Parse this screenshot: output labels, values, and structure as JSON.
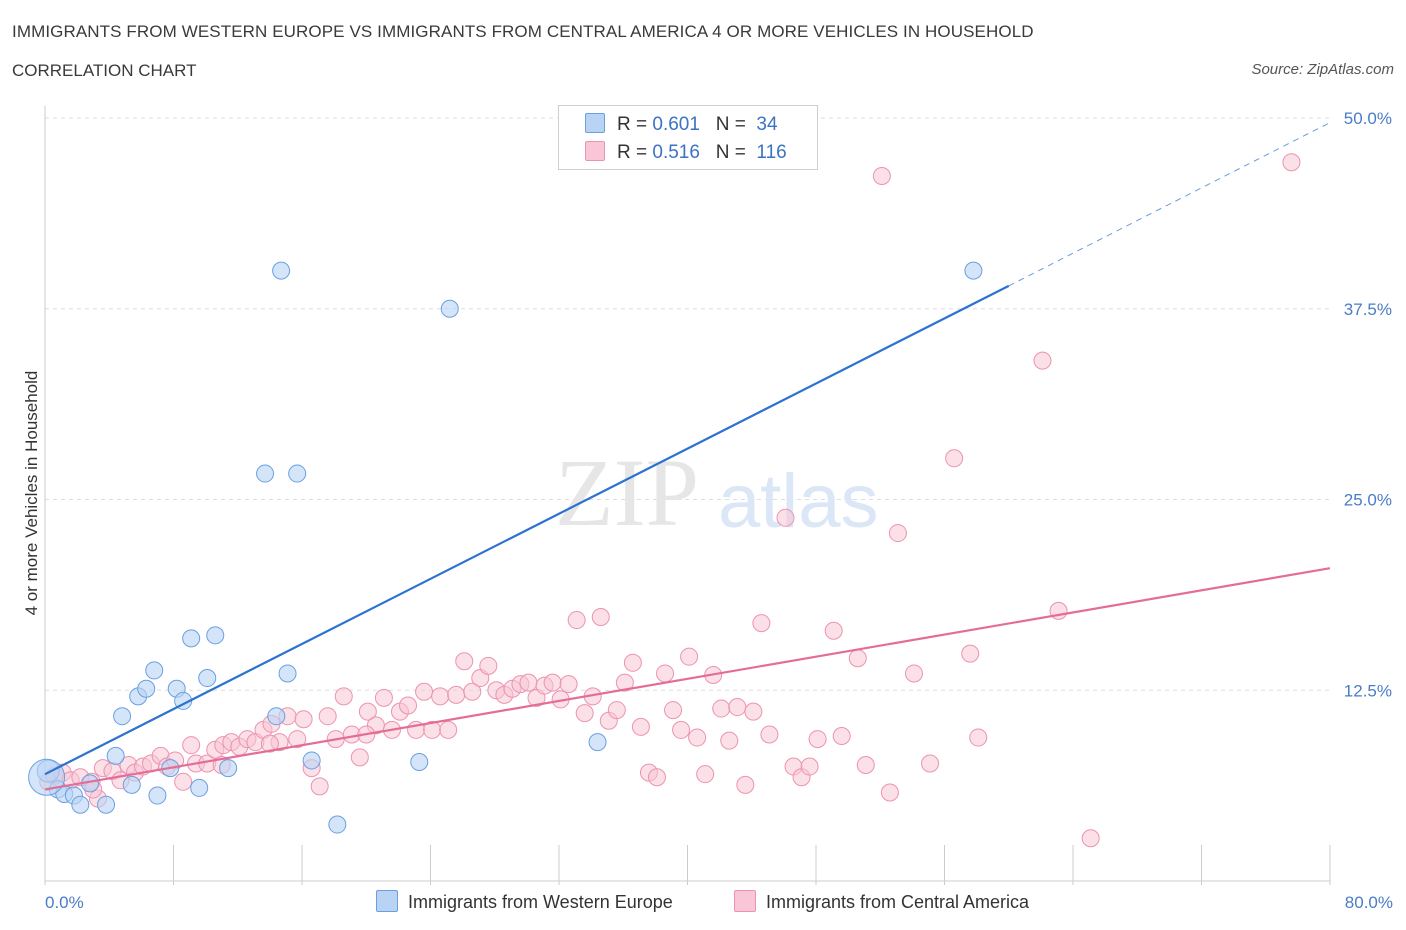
{
  "header": {
    "title": "IMMIGRANTS FROM WESTERN EUROPE VS IMMIGRANTS FROM CENTRAL AMERICA 4 OR MORE VEHICLES IN HOUSEHOLD",
    "subtitle": "CORRELATION CHART",
    "source": "Source: ZipAtlas.com"
  },
  "watermark": {
    "zip": "ZIP",
    "atlas": "atlas"
  },
  "legend": {
    "rows": [
      {
        "r_label": "R = ",
        "r_value": "0.601",
        "n_label": "N = ",
        "n_value": "34"
      },
      {
        "r_label": "R = ",
        "r_value": "0.516",
        "n_label": "N = ",
        "n_value": "116"
      }
    ]
  },
  "colors": {
    "blue_fill": "#b9d3f5",
    "blue_stroke": "#6a9fe0",
    "blue_line": "#2c72d0",
    "pink_fill": "#f8c6d6",
    "pink_stroke": "#ec93b0",
    "pink_line": "#e46d98",
    "grid": "#dddddd"
  },
  "chart_data": {
    "type": "scatter",
    "title": "IMMIGRANTS FROM WESTERN EUROPE VS IMMIGRANTS FROM CENTRAL AMERICA 4 OR MORE VEHICLES IN HOUSEHOLD",
    "subtitle": "CORRELATION CHART",
    "xlabel": "",
    "ylabel": "4 or more Vehicles in Household",
    "xlim": [
      0,
      80
    ],
    "ylim": [
      0,
      50
    ],
    "x_tick_labels": [
      "0.0%",
      "80.0%"
    ],
    "y_ticks": [
      12.5,
      25.0,
      37.5,
      50.0
    ],
    "y_tick_labels": [
      "12.5%",
      "25.0%",
      "37.5%",
      "50.0%"
    ],
    "grid": true,
    "legend_position": "bottom",
    "series": [
      {
        "name": "Immigrants from Western Europe",
        "R": 0.601,
        "N": 34,
        "trend": {
          "x": [
            0,
            60
          ],
          "y": [
            7.0,
            39.0
          ],
          "dashed_extension": {
            "x": [
              60,
              80
            ],
            "y": [
              39.0,
              49.7
            ]
          }
        },
        "points": [
          [
            0.2,
            7.2
          ],
          [
            0.8,
            6.0
          ],
          [
            1.2,
            5.7
          ],
          [
            1.8,
            5.6
          ],
          [
            2.2,
            5.0
          ],
          [
            2.8,
            6.4
          ],
          [
            3.8,
            5.0
          ],
          [
            4.4,
            8.2
          ],
          [
            4.8,
            10.8
          ],
          [
            5.4,
            6.3
          ],
          [
            5.8,
            12.1
          ],
          [
            6.3,
            12.6
          ],
          [
            6.8,
            13.8
          ],
          [
            7.0,
            5.6
          ],
          [
            7.8,
            7.4
          ],
          [
            8.2,
            12.6
          ],
          [
            8.6,
            11.8
          ],
          [
            9.1,
            15.9
          ],
          [
            9.6,
            6.1
          ],
          [
            10.1,
            13.3
          ],
          [
            10.6,
            16.1
          ],
          [
            11.4,
            7.4
          ],
          [
            13.7,
            26.7
          ],
          [
            14.4,
            10.8
          ],
          [
            14.7,
            40.0
          ],
          [
            15.1,
            13.6
          ],
          [
            15.7,
            26.7
          ],
          [
            16.6,
            7.9
          ],
          [
            18.2,
            3.7
          ],
          [
            23.3,
            7.8
          ],
          [
            25.2,
            37.5
          ],
          [
            34.4,
            9.1
          ],
          [
            57.8,
            40.0
          ],
          [
            0.1,
            6.8
          ]
        ]
      },
      {
        "name": "Immigrants from Central America",
        "R": 0.516,
        "N": 116,
        "trend": {
          "x": [
            0,
            80
          ],
          "y": [
            6.0,
            20.5
          ]
        },
        "points": [
          [
            0.2,
            6.5
          ],
          [
            0.6,
            6.9
          ],
          [
            1.1,
            7.1
          ],
          [
            1.6,
            6.6
          ],
          [
            2.2,
            6.8
          ],
          [
            2.9,
            6.5
          ],
          [
            3.3,
            5.4
          ],
          [
            3.6,
            7.4
          ],
          [
            4.2,
            7.2
          ],
          [
            4.7,
            6.6
          ],
          [
            5.2,
            7.6
          ],
          [
            5.6,
            7.1
          ],
          [
            6.1,
            7.5
          ],
          [
            6.6,
            7.7
          ],
          [
            7.2,
            8.2
          ],
          [
            7.6,
            7.5
          ],
          [
            8.1,
            7.9
          ],
          [
            8.6,
            6.5
          ],
          [
            9.1,
            8.9
          ],
          [
            9.4,
            7.7
          ],
          [
            10.1,
            7.7
          ],
          [
            10.6,
            8.6
          ],
          [
            11.1,
            8.9
          ],
          [
            11.6,
            9.1
          ],
          [
            12.1,
            8.8
          ],
          [
            12.6,
            9.3
          ],
          [
            13.1,
            9.1
          ],
          [
            13.6,
            9.9
          ],
          [
            14.1,
            10.3
          ],
          [
            14.6,
            9.1
          ],
          [
            15.1,
            10.8
          ],
          [
            15.7,
            9.3
          ],
          [
            16.1,
            10.6
          ],
          [
            16.6,
            7.4
          ],
          [
            17.1,
            6.2
          ],
          [
            17.6,
            10.8
          ],
          [
            18.1,
            9.3
          ],
          [
            18.6,
            12.1
          ],
          [
            19.1,
            9.6
          ],
          [
            19.6,
            8.1
          ],
          [
            20.1,
            11.1
          ],
          [
            20.6,
            10.2
          ],
          [
            21.1,
            12.0
          ],
          [
            21.6,
            9.9
          ],
          [
            22.1,
            11.1
          ],
          [
            22.6,
            11.5
          ],
          [
            23.1,
            9.9
          ],
          [
            23.6,
            12.4
          ],
          [
            24.1,
            9.9
          ],
          [
            24.6,
            12.1
          ],
          [
            25.1,
            9.9
          ],
          [
            25.6,
            12.2
          ],
          [
            26.1,
            14.4
          ],
          [
            26.6,
            12.4
          ],
          [
            27.1,
            13.3
          ],
          [
            27.6,
            14.1
          ],
          [
            28.1,
            12.5
          ],
          [
            28.6,
            12.2
          ],
          [
            29.1,
            12.6
          ],
          [
            29.6,
            12.9
          ],
          [
            30.1,
            13.0
          ],
          [
            30.6,
            12.0
          ],
          [
            31.1,
            12.8
          ],
          [
            31.6,
            13.0
          ],
          [
            32.1,
            11.9
          ],
          [
            32.6,
            12.9
          ],
          [
            33.1,
            17.1
          ],
          [
            33.6,
            11.0
          ],
          [
            34.1,
            12.1
          ],
          [
            34.6,
            17.3
          ],
          [
            35.1,
            10.5
          ],
          [
            35.6,
            11.2
          ],
          [
            36.1,
            13.0
          ],
          [
            36.6,
            14.3
          ],
          [
            37.1,
            10.1
          ],
          [
            37.6,
            7.1
          ],
          [
            38.1,
            6.8
          ],
          [
            38.6,
            13.6
          ],
          [
            39.1,
            11.2
          ],
          [
            39.6,
            9.9
          ],
          [
            40.1,
            14.7
          ],
          [
            40.6,
            9.4
          ],
          [
            41.1,
            7.0
          ],
          [
            41.6,
            13.5
          ],
          [
            42.1,
            11.3
          ],
          [
            42.6,
            9.2
          ],
          [
            43.1,
            11.4
          ],
          [
            43.6,
            6.3
          ],
          [
            44.1,
            11.1
          ],
          [
            44.6,
            16.9
          ],
          [
            45.1,
            9.6
          ],
          [
            46.1,
            23.8
          ],
          [
            46.6,
            7.5
          ],
          [
            47.1,
            6.8
          ],
          [
            47.6,
            7.5
          ],
          [
            48.1,
            9.3
          ],
          [
            49.1,
            16.4
          ],
          [
            49.6,
            9.5
          ],
          [
            50.6,
            14.6
          ],
          [
            51.1,
            7.6
          ],
          [
            52.1,
            46.2
          ],
          [
            52.6,
            5.8
          ],
          [
            53.1,
            22.8
          ],
          [
            54.1,
            13.6
          ],
          [
            55.1,
            7.7
          ],
          [
            56.6,
            27.7
          ],
          [
            57.6,
            14.9
          ],
          [
            58.1,
            9.4
          ],
          [
            62.1,
            34.1
          ],
          [
            63.1,
            17.7
          ],
          [
            65.1,
            2.8
          ],
          [
            77.6,
            47.1
          ],
          [
            3.0,
            6.0
          ],
          [
            11.0,
            7.6
          ],
          [
            14.0,
            9.0
          ],
          [
            20.0,
            9.6
          ]
        ]
      }
    ]
  },
  "bottom_legend": [
    {
      "label": "Immigrants from Western Europe"
    },
    {
      "label": "Immigrants from Central America"
    }
  ]
}
